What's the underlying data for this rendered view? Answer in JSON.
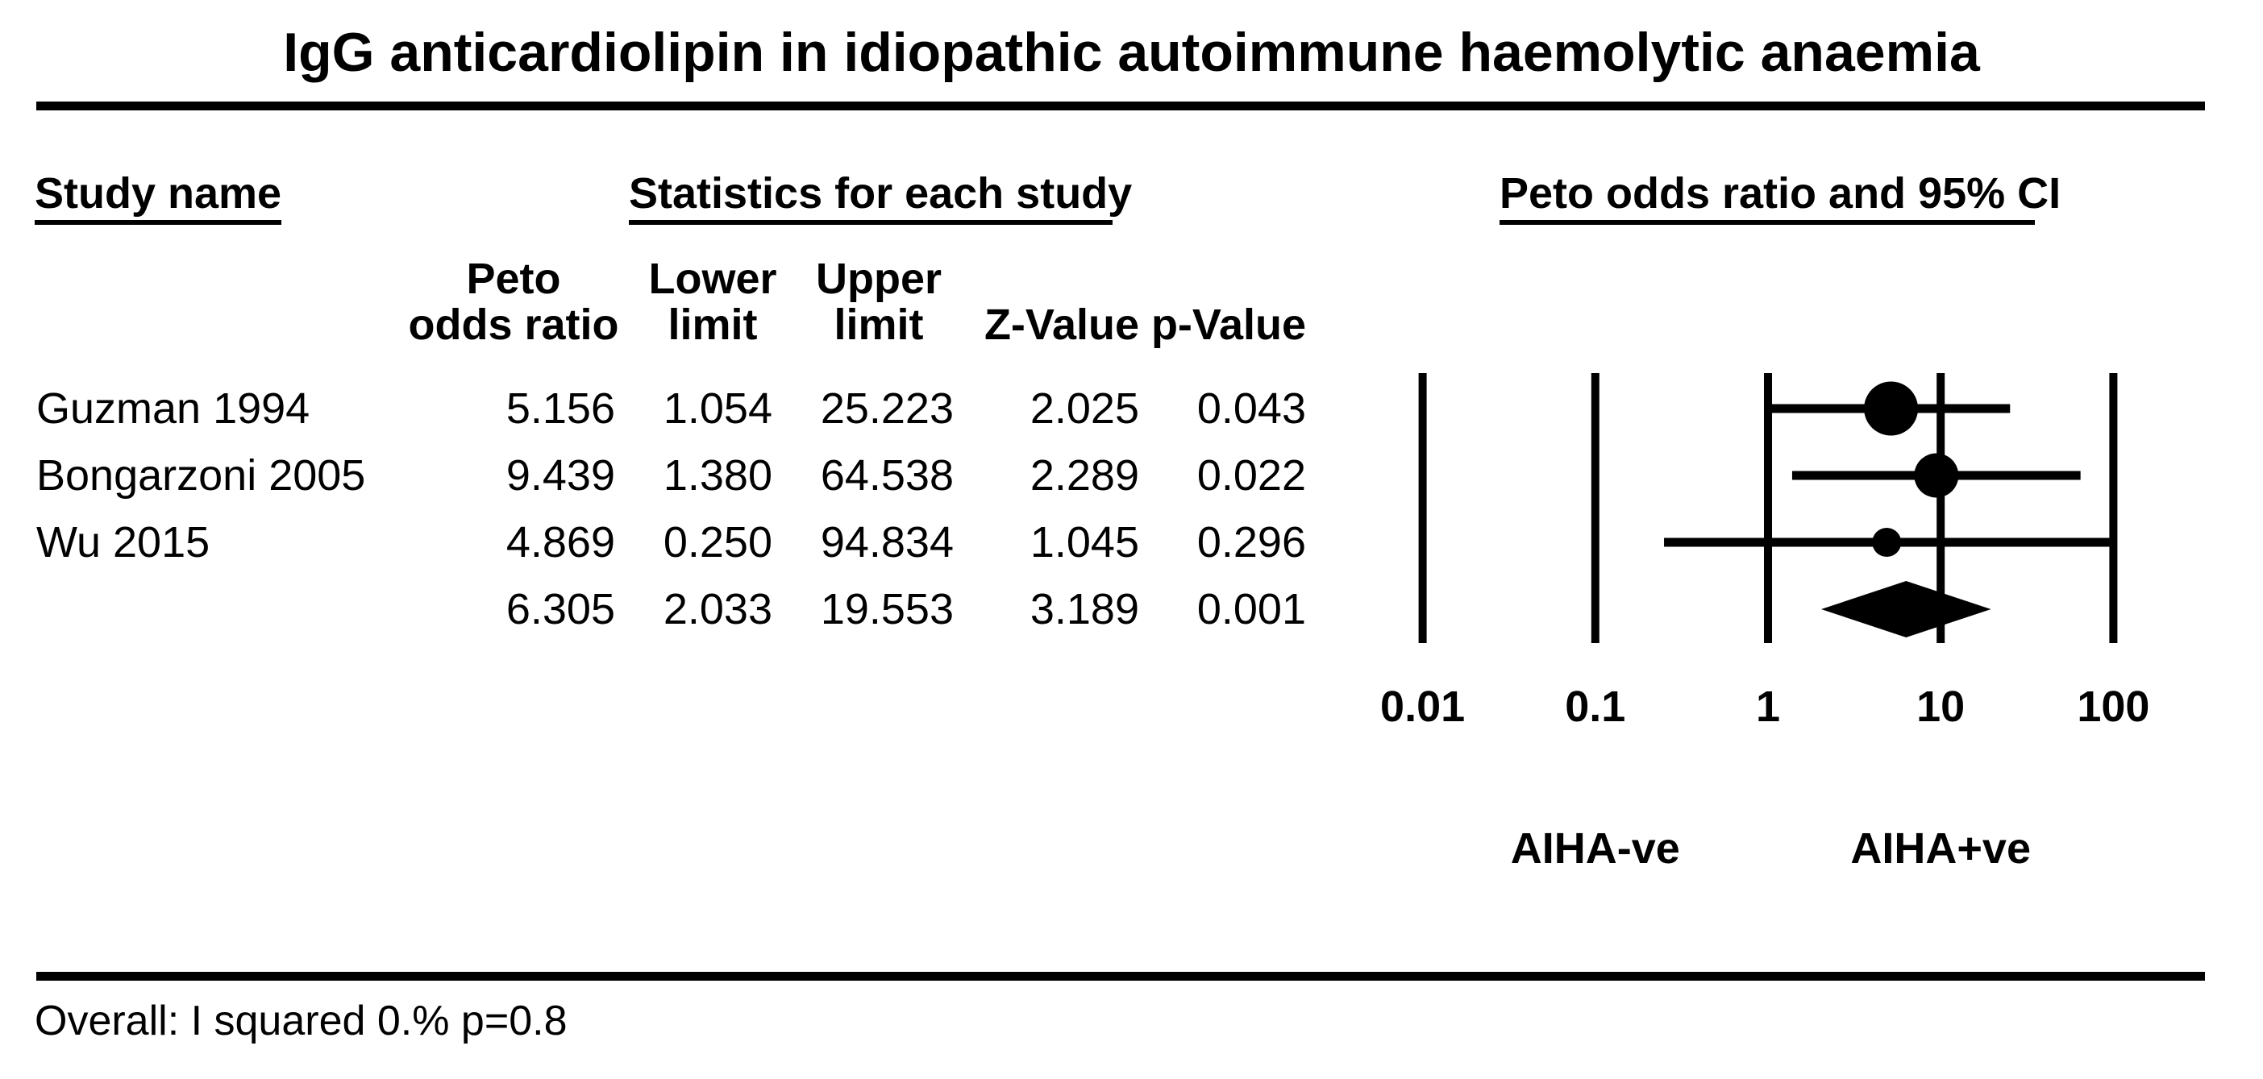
{
  "title": "IgG anticardiolipin in idiopathic autoimmune haemolytic anaemia",
  "section_headers": {
    "study": "Study name",
    "statistics": "Statistics for each study",
    "plot": "Peto odds ratio and 95% CI"
  },
  "columns": {
    "peto_line1": "Peto",
    "peto_line2": "odds ratio",
    "lower_line1": "Lower",
    "lower_line2": "limit",
    "upper_line1": "Upper",
    "upper_line2": "limit",
    "z": "Z-Value",
    "p": "p-Value"
  },
  "table": {
    "rows": [
      {
        "study": "Guzman 1994",
        "peto": "5.156",
        "lower": "1.054",
        "upper": "25.223",
        "z": "2.025",
        "p": "0.043"
      },
      {
        "study": "Bongarzoni 2005",
        "peto": "9.439",
        "lower": "1.380",
        "upper": "64.538",
        "z": "2.289",
        "p": "0.022"
      },
      {
        "study": "Wu 2015",
        "peto": "4.869",
        "lower": "0.250",
        "upper": "94.834",
        "z": "1.045",
        "p": "0.296"
      },
      {
        "study": "",
        "peto": "6.305",
        "lower": "2.033",
        "upper": "19.553",
        "z": "3.189",
        "p": "0.001"
      }
    ]
  },
  "footer": "Overall: I squared 0.% p=0.8",
  "chart_data": {
    "type": "forest",
    "title": "IgG anticardiolipin in idiopathic autoimmune haemolytic anaemia",
    "x_scale": "log10",
    "xlim": [
      0.01,
      100
    ],
    "x_ticks": [
      {
        "value": 0.01,
        "label": "0.01"
      },
      {
        "value": 0.1,
        "label": "0.1"
      },
      {
        "value": 1,
        "label": "1"
      },
      {
        "value": 10,
        "label": "10"
      },
      {
        "value": 100,
        "label": "100"
      }
    ],
    "effect_measure": "Peto odds ratio and 95% CI",
    "studies": [
      {
        "name": "Guzman 1994",
        "odds_ratio": 5.156,
        "ci_lower": 1.054,
        "ci_upper": 25.223,
        "z_value": 2.025,
        "p_value": 0.043,
        "marker_diameter_px": 67
      },
      {
        "name": "Bongarzoni 2005",
        "odds_ratio": 9.439,
        "ci_lower": 1.38,
        "ci_upper": 64.538,
        "z_value": 2.289,
        "p_value": 0.022,
        "marker_diameter_px": 55
      },
      {
        "name": "Wu 2015",
        "odds_ratio": 4.869,
        "ci_lower": 0.25,
        "ci_upper": 94.834,
        "z_value": 1.045,
        "p_value": 0.296,
        "marker_diameter_px": 36
      }
    ],
    "overall": {
      "odds_ratio": 6.305,
      "ci_lower": 2.033,
      "ci_upper": 19.553,
      "z_value": 3.189,
      "p_value": 0.001
    },
    "group_labels": [
      {
        "text": "AIHA-ve",
        "at_value": 0.1
      },
      {
        "text": "AIHA+ve",
        "at_value": 10
      }
    ],
    "heterogeneity_note": "Overall: I squared 0.% p=0.8",
    "colors": {
      "foreground": "#000000",
      "background": "#ffffff"
    }
  }
}
